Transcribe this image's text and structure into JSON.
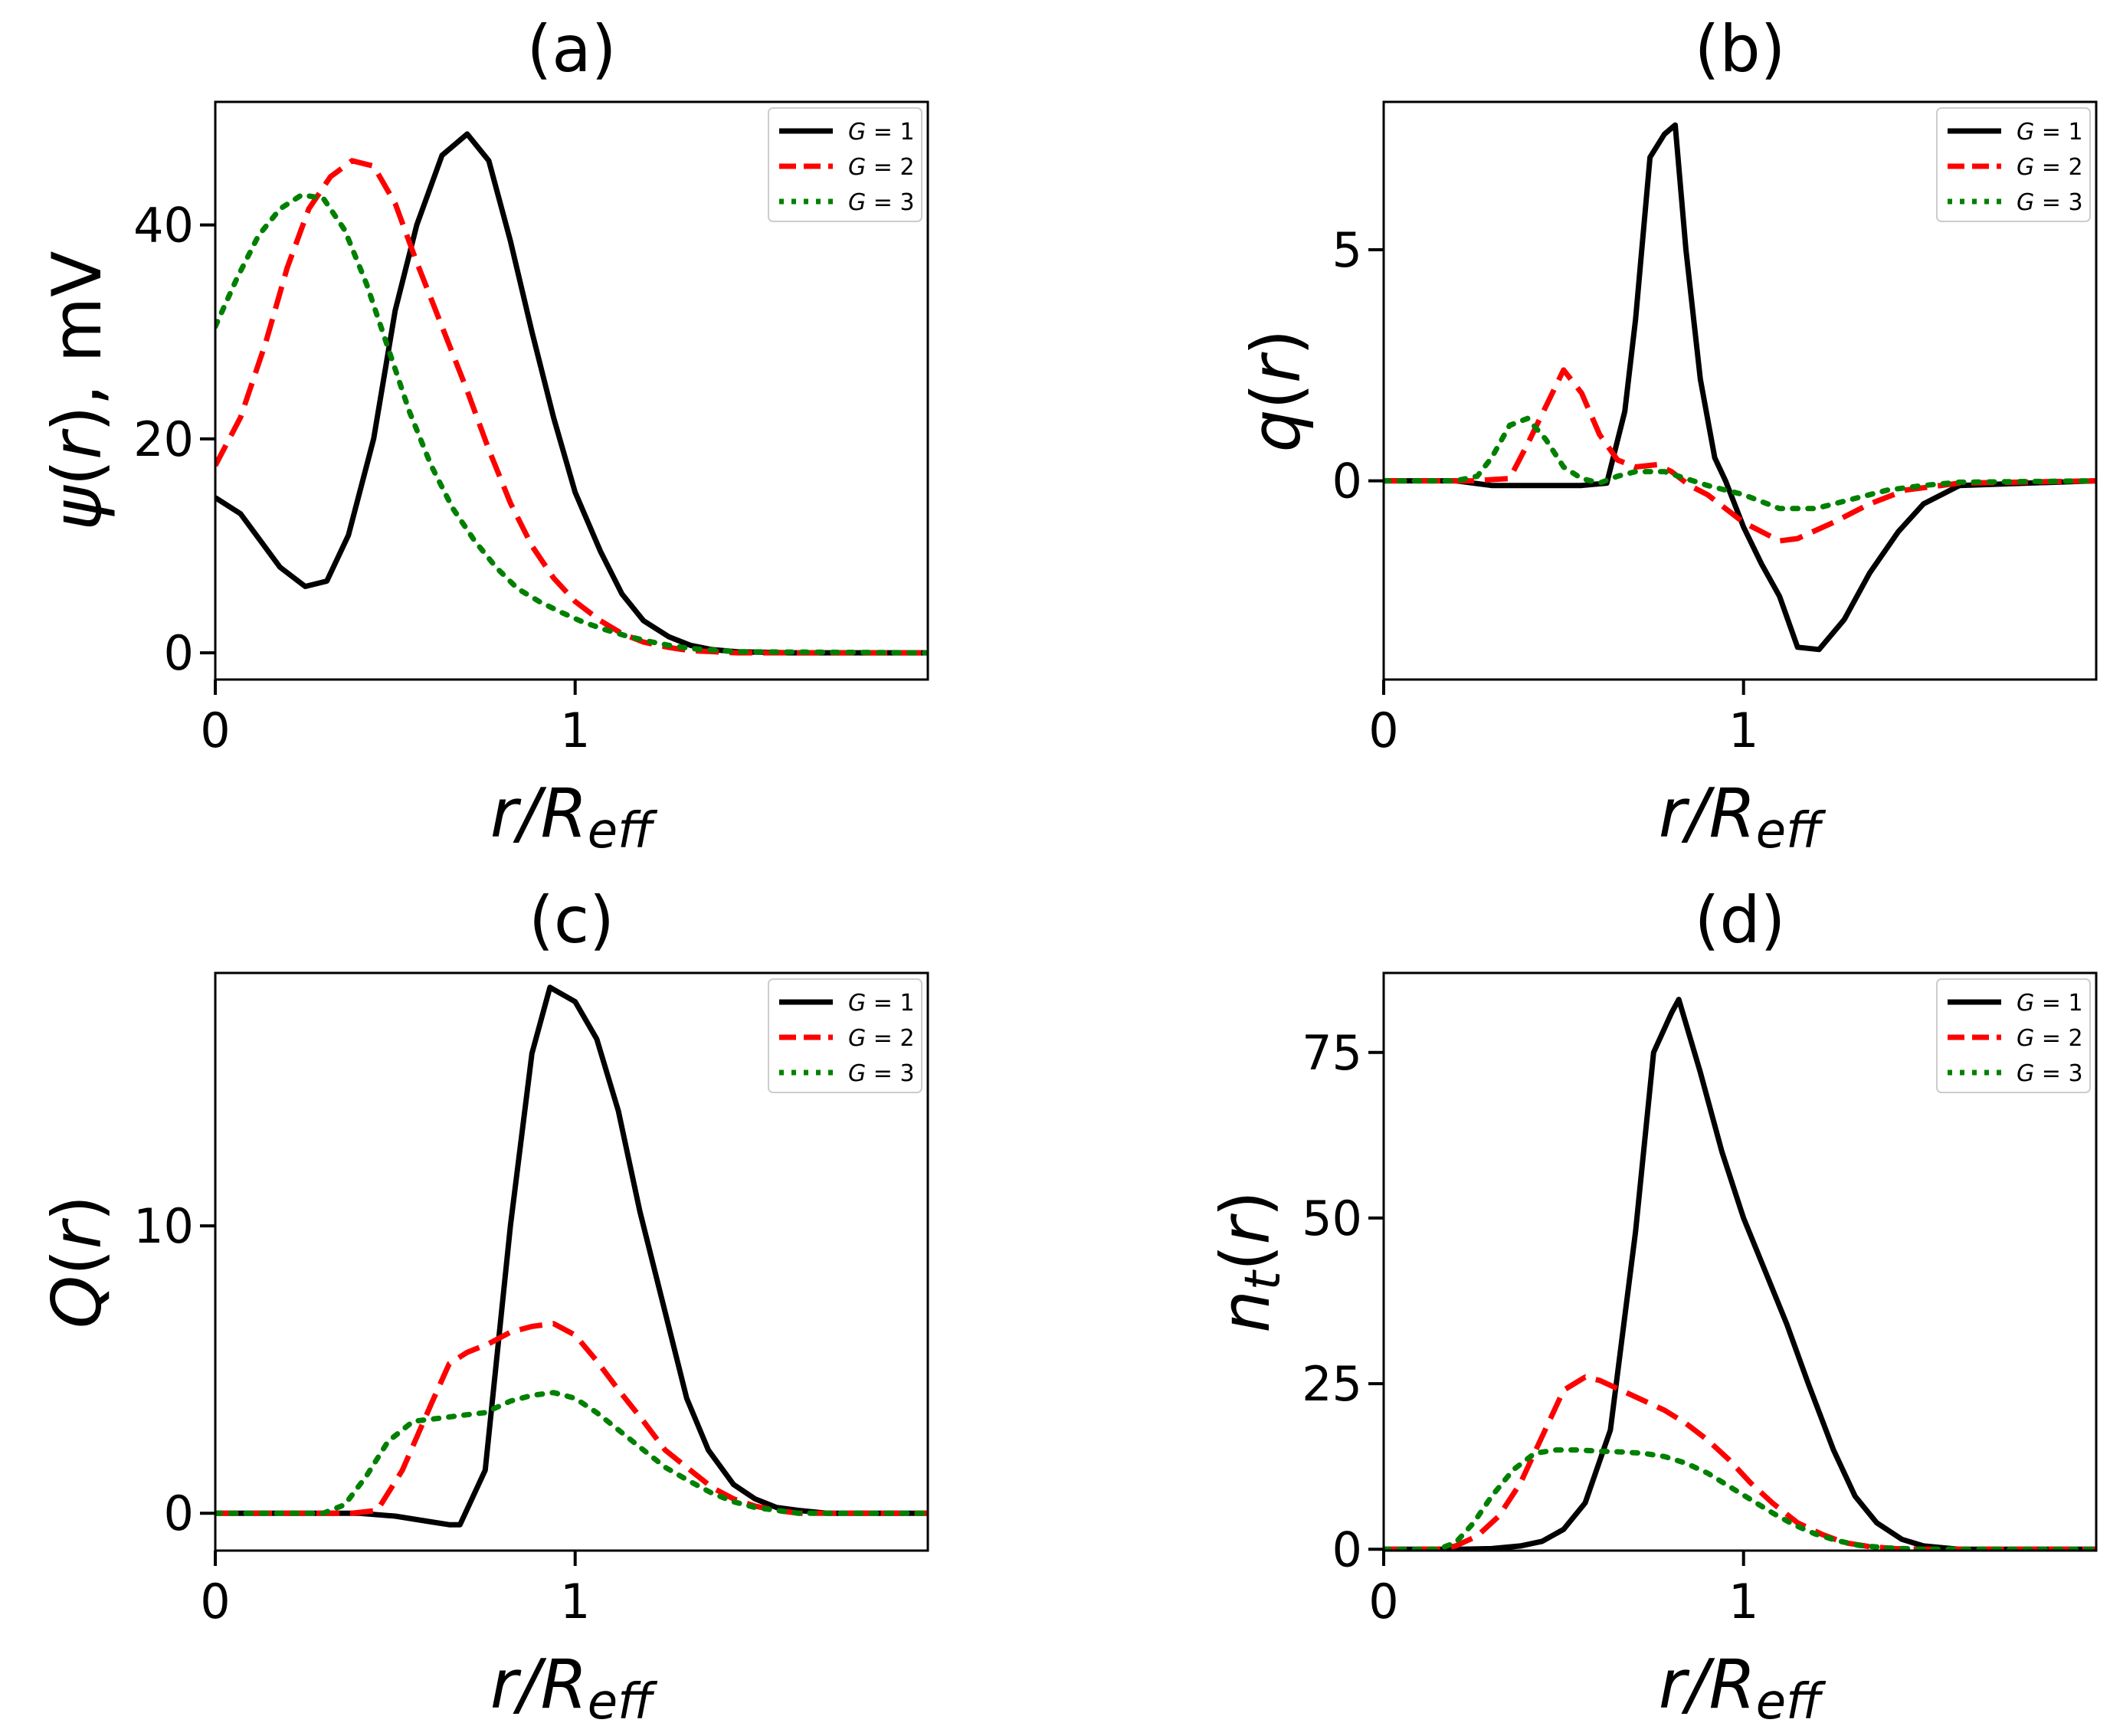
{
  "figure": {
    "description_free": true
  },
  "legend_labels": [
    {
      "name": "G",
      "eq": " = 1"
    },
    {
      "name": "G",
      "eq": " = 2"
    },
    {
      "name": "G",
      "eq": " = 3"
    }
  ],
  "colors": {
    "G1": "#000000",
    "G2": "#ff0000",
    "G3": "#008000"
  },
  "chart_data": [
    {
      "type": "line",
      "title": "(a)",
      "xlabel": {
        "base": "r/R",
        "sub": "eff"
      },
      "ylabel": {
        "pre": "",
        "sym": "ψ",
        "arg": "(r)",
        "post": ", mV"
      },
      "xlim": [
        0,
        1.98
      ],
      "ylim": [
        -2.5,
        51.5
      ],
      "xticks": [
        0,
        1
      ],
      "xtick_labels": [
        "0",
        "1"
      ],
      "yticks": [
        0,
        20,
        40
      ],
      "ytick_labels": [
        "0",
        "20",
        "40"
      ],
      "legend": "top-right",
      "series": [
        {
          "name": "G = 1",
          "style": "solid",
          "x": [
            0,
            0.07,
            0.18,
            0.25,
            0.31,
            0.37,
            0.44,
            0.5,
            0.56,
            0.63,
            0.7,
            0.76,
            0.82,
            0.88,
            0.94,
            1.0,
            1.07,
            1.13,
            1.19,
            1.26,
            1.32,
            1.38,
            1.45,
            1.6,
            1.98
          ],
          "y": [
            14.5,
            13,
            8,
            6.2,
            6.7,
            11,
            20,
            32,
            40,
            46.5,
            48.5,
            46,
            38.5,
            30,
            22,
            15,
            9.5,
            5.5,
            3,
            1.5,
            0.7,
            0.3,
            0.1,
            0,
            0
          ]
        },
        {
          "name": "G = 2",
          "style": "dashed",
          "x": [
            0,
            0.07,
            0.14,
            0.2,
            0.26,
            0.32,
            0.38,
            0.44,
            0.5,
            0.56,
            0.63,
            0.7,
            0.76,
            0.82,
            0.88,
            0.94,
            1.0,
            1.07,
            1.13,
            1.19,
            1.26,
            1.32,
            1.45,
            1.98
          ],
          "y": [
            17.5,
            22,
            29,
            36,
            41.5,
            44.5,
            46,
            45.5,
            42,
            36.5,
            30.5,
            24.5,
            19,
            14,
            10,
            7,
            4.8,
            3,
            1.8,
            1,
            0.5,
            0.2,
            0,
            0
          ]
        },
        {
          "name": "G = 3",
          "style": "dotted",
          "x": [
            0,
            0.06,
            0.12,
            0.18,
            0.24,
            0.3,
            0.36,
            0.42,
            0.48,
            0.54,
            0.6,
            0.66,
            0.72,
            0.78,
            0.84,
            0.9,
            0.96,
            1.02,
            1.08,
            1.14,
            1.2,
            1.26,
            1.32,
            1.45,
            1.98
          ],
          "y": [
            30.5,
            35,
            39,
            41.5,
            42.8,
            42.5,
            39.5,
            34.5,
            28.5,
            22.5,
            17.5,
            13.5,
            10.5,
            8,
            6,
            4.8,
            3.8,
            2.9,
            2.2,
            1.6,
            1.1,
            0.7,
            0.4,
            0.1,
            0
          ]
        }
      ]
    },
    {
      "type": "line",
      "title": "(b)",
      "xlabel": {
        "base": "r/R",
        "sub": "eff"
      },
      "ylabel": {
        "pre": "",
        "sym": "q",
        "arg": "(r)",
        "post": ""
      },
      "xlim": [
        0,
        1.98
      ],
      "ylim": [
        -4.3,
        8.2
      ],
      "xticks": [
        0,
        1
      ],
      "xtick_labels": [
        "0",
        "1"
      ],
      "yticks": [
        0,
        5
      ],
      "ytick_labels": [
        "0",
        "5"
      ],
      "legend": "top-right",
      "series": [
        {
          "name": "G = 1",
          "style": "solid",
          "x": [
            0,
            0.2,
            0.3,
            0.4,
            0.5,
            0.55,
            0.62,
            0.67,
            0.7,
            0.74,
            0.78,
            0.81,
            0.84,
            0.88,
            0.92,
            0.95,
            1.0,
            1.05,
            1.1,
            1.15,
            1.21,
            1.28,
            1.35,
            1.43,
            1.5,
            1.6,
            1.98
          ],
          "y": [
            0,
            0,
            -0.1,
            -0.1,
            -0.1,
            -0.1,
            -0.05,
            1.5,
            3.5,
            7,
            7.5,
            7.7,
            5,
            2.2,
            0.5,
            0,
            -1.0,
            -1.8,
            -2.5,
            -3.6,
            -3.65,
            -3.0,
            -2.0,
            -1.1,
            -0.5,
            -0.1,
            0
          ]
        },
        {
          "name": "G = 2",
          "style": "dashed",
          "x": [
            0,
            0.25,
            0.35,
            0.4,
            0.45,
            0.5,
            0.55,
            0.6,
            0.65,
            0.7,
            0.76,
            0.8,
            0.85,
            0.9,
            1.0,
            1.1,
            1.15,
            1.25,
            1.35,
            1.45,
            1.6,
            1.98
          ],
          "y": [
            0,
            0,
            0.05,
            0.8,
            1.6,
            2.4,
            1.9,
            1.0,
            0.45,
            0.3,
            0.35,
            0.2,
            -0.1,
            -0.3,
            -0.9,
            -1.3,
            -1.25,
            -0.9,
            -0.5,
            -0.2,
            -0.05,
            0
          ]
        },
        {
          "name": "G = 3",
          "style": "dotted",
          "x": [
            0,
            0.2,
            0.26,
            0.3,
            0.35,
            0.4,
            0.45,
            0.5,
            0.55,
            0.6,
            0.65,
            0.7,
            0.78,
            0.9,
            1.0,
            1.1,
            1.2,
            1.3,
            1.4,
            1.5,
            1.6,
            1.98
          ],
          "y": [
            0,
            0,
            0.1,
            0.5,
            1.2,
            1.35,
            0.9,
            0.3,
            0.05,
            -0.05,
            0.1,
            0.2,
            0.2,
            -0.1,
            -0.3,
            -0.6,
            -0.6,
            -0.4,
            -0.2,
            -0.1,
            -0.03,
            0
          ]
        }
      ]
    },
    {
      "type": "line",
      "title": "(c)",
      "xlabel": {
        "base": "r/R",
        "sub": "eff"
      },
      "ylabel": {
        "pre": "",
        "sym": "Q",
        "arg": "(r)",
        "post": ""
      },
      "xlim": [
        0,
        1.98
      ],
      "ylim": [
        -1.3,
        18.8
      ],
      "xticks": [
        0,
        1
      ],
      "xtick_labels": [
        "0",
        "1"
      ],
      "yticks": [
        0,
        10
      ],
      "ytick_labels": [
        "0",
        "10"
      ],
      "legend": "top-right",
      "series": [
        {
          "name": "G = 1",
          "style": "solid",
          "x": [
            0,
            0.3,
            0.4,
            0.5,
            0.6,
            0.65,
            0.68,
            0.75,
            0.82,
            0.88,
            0.93,
            1.0,
            1.06,
            1.12,
            1.18,
            1.25,
            1.31,
            1.37,
            1.44,
            1.5,
            1.56,
            1.62,
            1.7,
            1.98
          ],
          "y": [
            0,
            0,
            0,
            -0.1,
            -0.3,
            -0.4,
            -0.4,
            1.5,
            10,
            16,
            18.3,
            17.8,
            16.5,
            14,
            10.5,
            7,
            4,
            2.2,
            1,
            0.5,
            0.2,
            0.1,
            0,
            0
          ]
        },
        {
          "name": "G = 2",
          "style": "dashed",
          "x": [
            0,
            0.3,
            0.38,
            0.45,
            0.52,
            0.6,
            0.65,
            0.7,
            0.76,
            0.82,
            0.88,
            0.94,
            1.0,
            1.06,
            1.12,
            1.19,
            1.25,
            1.32,
            1.38,
            1.44,
            1.5,
            1.56,
            1.62,
            1.7,
            1.98
          ],
          "y": [
            0,
            0,
            0,
            0.1,
            1.5,
            3.8,
            5.2,
            5.6,
            5.9,
            6.3,
            6.5,
            6.6,
            6.2,
            5.3,
            4.3,
            3.2,
            2.2,
            1.5,
            0.9,
            0.5,
            0.25,
            0.1,
            0,
            0,
            0
          ]
        },
        {
          "name": "G = 3",
          "style": "dotted",
          "x": [
            0,
            0.3,
            0.36,
            0.42,
            0.48,
            0.55,
            0.62,
            0.68,
            0.75,
            0.82,
            0.88,
            0.94,
            1.0,
            1.06,
            1.12,
            1.19,
            1.25,
            1.32,
            1.38,
            1.44,
            1.5,
            1.56,
            1.62,
            1.98
          ],
          "y": [
            0,
            0,
            0.3,
            1.3,
            2.5,
            3.2,
            3.3,
            3.4,
            3.5,
            3.9,
            4.1,
            4.2,
            4.0,
            3.5,
            2.9,
            2.2,
            1.6,
            1.1,
            0.7,
            0.4,
            0.2,
            0.1,
            0,
            0
          ]
        }
      ]
    },
    {
      "type": "line",
      "title": "(d)",
      "xlabel": {
        "base": "r/R",
        "sub": "eff"
      },
      "ylabel": {
        "pre": "",
        "sym": "n",
        "sub": "t",
        "arg": "(r)",
        "post": ""
      },
      "xlim": [
        0,
        1.98
      ],
      "ylim": [
        -0.2,
        87
      ],
      "xticks": [
        0,
        1
      ],
      "xtick_labels": [
        "0",
        "1"
      ],
      "yticks": [
        0,
        25,
        50,
        75
      ],
      "ytick_labels": [
        "0",
        "25",
        "50",
        "75"
      ],
      "legend": "top-right",
      "series": [
        {
          "name": "G = 1",
          "style": "solid",
          "x": [
            0,
            0.2,
            0.3,
            0.38,
            0.44,
            0.5,
            0.56,
            0.63,
            0.7,
            0.75,
            0.8,
            0.82,
            0.88,
            0.94,
            1.0,
            1.06,
            1.12,
            1.18,
            1.25,
            1.31,
            1.37,
            1.44,
            1.5,
            1.6,
            1.98
          ],
          "y": [
            0,
            0,
            0.1,
            0.5,
            1.2,
            3,
            7,
            18,
            48,
            75,
            81,
            83,
            72,
            60,
            50,
            42,
            34,
            25,
            15,
            8,
            4,
            1.5,
            0.5,
            0,
            0
          ]
        },
        {
          "name": "G = 2",
          "style": "dashed",
          "x": [
            0,
            0.15,
            0.2,
            0.26,
            0.32,
            0.38,
            0.44,
            0.5,
            0.56,
            0.6,
            0.66,
            0.72,
            0.78,
            0.84,
            0.9,
            0.96,
            1.02,
            1.08,
            1.15,
            1.22,
            1.28,
            1.35,
            1.42,
            1.5,
            1.98
          ],
          "y": [
            0,
            0,
            0.5,
            2,
            5,
            10,
            17,
            24,
            26,
            25.5,
            24,
            22.5,
            21,
            19,
            16.5,
            13.5,
            10,
            7,
            4,
            2.2,
            1,
            0.4,
            0.1,
            0,
            0
          ]
        },
        {
          "name": "G = 3",
          "style": "dotted",
          "x": [
            0,
            0.15,
            0.2,
            0.25,
            0.3,
            0.36,
            0.42,
            0.48,
            0.54,
            0.6,
            0.66,
            0.72,
            0.78,
            0.84,
            0.9,
            0.96,
            1.02,
            1.08,
            1.14,
            1.2,
            1.26,
            1.32,
            1.4,
            1.5,
            1.98
          ],
          "y": [
            0,
            0,
            1,
            4,
            8,
            12,
            14.5,
            15,
            15,
            14.8,
            14.7,
            14.5,
            14,
            13,
            11.5,
            9.5,
            7.5,
            5.5,
            3.7,
            2.3,
            1.3,
            0.6,
            0.2,
            0,
            0
          ]
        }
      ]
    }
  ]
}
